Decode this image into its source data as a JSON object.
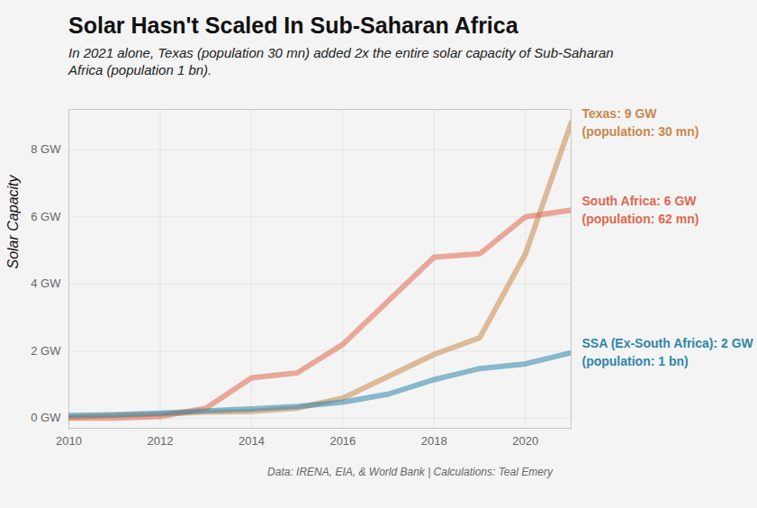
{
  "chart_data": {
    "type": "line",
    "title": "Solar Hasn't Scaled In Sub-Saharan Africa",
    "subtitle": "In 2021 alone, Texas (population 30 mn) added 2x the entire solar capacity of Sub-Saharan Africa (population 1 bn).",
    "y_label": "Solar Capacity",
    "caption": "Data: IRENA, EIA, & World Bank | Calculations: Teal Emery",
    "x": [
      2010,
      2011,
      2012,
      2013,
      2014,
      2015,
      2016,
      2017,
      2018,
      2019,
      2020,
      2021
    ],
    "series": [
      {
        "name": "Texas: 9 GW",
        "color": "#c8894a",
        "values": [
          0.03,
          0.08,
          0.12,
          0.18,
          0.2,
          0.3,
          0.6,
          1.25,
          1.9,
          2.4,
          4.9,
          8.8
        ]
      },
      {
        "name": "South Africa: 6 GW",
        "color": "#e0674f",
        "values": [
          0.0,
          0.0,
          0.05,
          0.3,
          1.2,
          1.35,
          2.2,
          3.5,
          4.8,
          4.9,
          6.0,
          6.2
        ]
      },
      {
        "name": "SSA (Ex-South Africa): 2 GW",
        "color": "#2e86ab",
        "values": [
          0.08,
          0.1,
          0.15,
          0.22,
          0.28,
          0.35,
          0.48,
          0.72,
          1.15,
          1.48,
          1.62,
          1.95
        ]
      }
    ],
    "annotations": [
      {
        "series": "Texas: 9 GW",
        "text": "(population: 30 mn)"
      },
      {
        "series": "South Africa: 6 GW",
        "text": "(population: 62 mn)"
      },
      {
        "series": "SSA (Ex-South Africa): 2 GW",
        "text": "(population: 1 bn)"
      }
    ],
    "xlim": [
      2010,
      2021
    ],
    "xticks": [
      2010,
      2012,
      2014,
      2016,
      2018,
      2020
    ],
    "ylim": [
      -0.3,
      9.2
    ],
    "yticks": [
      {
        "value": 0,
        "label": "0 GW"
      },
      {
        "value": 2,
        "label": "2 GW"
      },
      {
        "value": 4,
        "label": "4 GW"
      },
      {
        "value": 6,
        "label": "6 GW"
      },
      {
        "value": 8,
        "label": "8 GW"
      }
    ],
    "grid": true
  }
}
